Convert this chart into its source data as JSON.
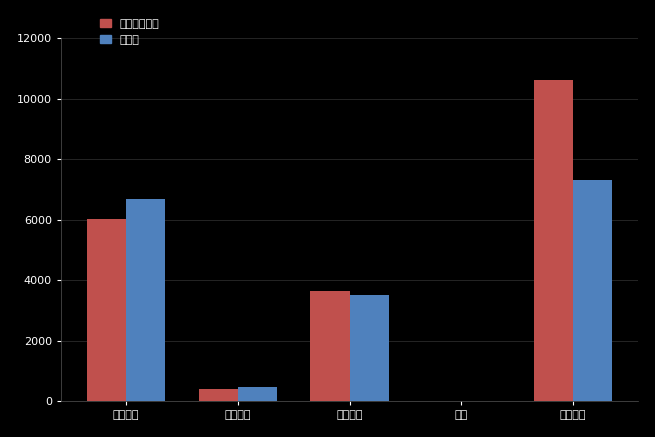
{
  "categories": [
    "살림규모",
    "자체수입",
    "이전재원",
    "채무",
    "공유재산"
  ],
  "similar_values": [
    6031,
    409,
    3655,
    5,
    10599
  ],
  "uiryeong_values": [
    6677,
    482,
    3506,
    0,
    7316
  ],
  "similar_color": "#c0504d",
  "uiryeong_color": "#4f81bd",
  "background_color": "#000000",
  "text_color": "#ffffff",
  "legend_labels": [
    "유사자치단체",
    "의령군"
  ],
  "bar_width": 0.35,
  "ylim": [
    0,
    12000
  ],
  "yticks": [
    0,
    2000,
    4000,
    6000,
    8000,
    10000,
    12000
  ]
}
